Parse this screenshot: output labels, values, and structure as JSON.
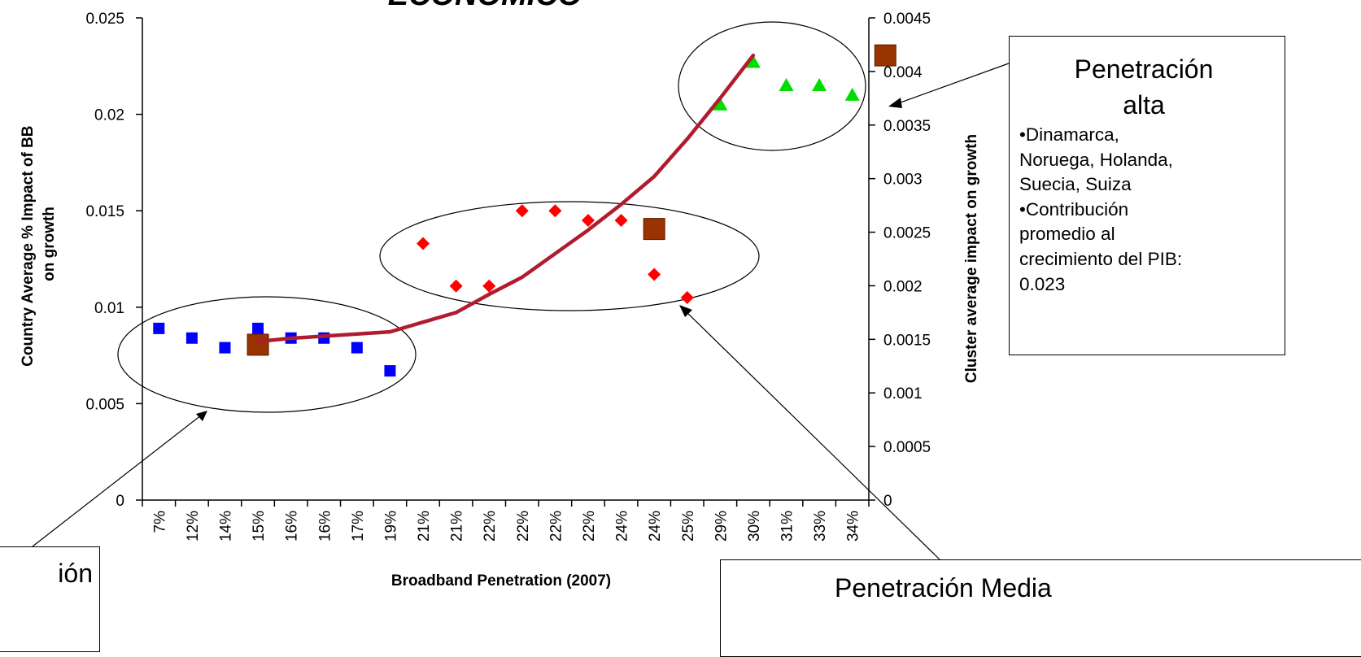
{
  "chart_data": {
    "type": "scatter",
    "title": "ECONÓMICO",
    "xlabel": "Broadband Penetration (2007)",
    "ylabel_left": "Country Average % Impact of BB on growth",
    "ylabel_right": "Cluster average impact on growth",
    "categories": [
      "7%",
      "12%",
      "14%",
      "15%",
      "16%",
      "16%",
      "17%",
      "19%",
      "21%",
      "21%",
      "22%",
      "22%",
      "22%",
      "22%",
      "24%",
      "24%",
      "25%",
      "29%",
      "30%",
      "31%",
      "33%",
      "34%"
    ],
    "ylim_left": [
      0,
      0.025
    ],
    "yticks_left": [
      "0",
      "0.005",
      "0.01",
      "0.015",
      "0.02",
      "0.025"
    ],
    "ylim_right": [
      0,
      0.0045
    ],
    "yticks_right": [
      "0",
      "0.0005",
      "0.001",
      "0.0015",
      "0.002",
      "0.0025",
      "0.003",
      "0.0035",
      "0.004",
      "0.0045"
    ],
    "series": [
      {
        "marker": "square",
        "color": "#0000ff",
        "points": [
          [
            0,
            0.0089
          ],
          [
            1,
            0.0084
          ],
          [
            2,
            0.0079
          ],
          [
            3,
            0.0089
          ],
          [
            4,
            0.0084
          ],
          [
            5,
            0.0084
          ],
          [
            6,
            0.0079
          ],
          [
            7,
            0.0067
          ]
        ]
      },
      {
        "marker": "diamond",
        "color": "#ff0000",
        "points": [
          [
            8,
            0.0133
          ],
          [
            9,
            0.0111
          ],
          [
            10,
            0.0111
          ],
          [
            11,
            0.015
          ],
          [
            12,
            0.015
          ],
          [
            13,
            0.0145
          ],
          [
            14,
            0.0145
          ],
          [
            15,
            0.0117
          ],
          [
            16,
            0.0105
          ]
        ]
      },
      {
        "marker": "triangle",
        "color": "#00dd00",
        "points": [
          [
            17,
            0.0205
          ],
          [
            18,
            0.0227
          ],
          [
            19,
            0.0215
          ],
          [
            20,
            0.0215
          ],
          [
            21,
            0.021
          ]
        ]
      },
      {
        "marker": "big-square",
        "color": "#993300",
        "axis": "right",
        "points": [
          [
            3,
            0.00145
          ],
          [
            15,
            0.00253
          ],
          [
            22,
            0.00415
          ]
        ]
      },
      {
        "marker": "line",
        "color": "#b01c2e",
        "axis": "right",
        "points": [
          [
            3,
            0.00148
          ],
          [
            4,
            0.00151
          ],
          [
            5,
            0.00153
          ],
          [
            6,
            0.00155
          ],
          [
            7,
            0.00157
          ],
          [
            8,
            0.00166
          ],
          [
            9,
            0.00175
          ],
          [
            10,
            0.00192
          ],
          [
            11,
            0.00208
          ],
          [
            12,
            0.0023
          ],
          [
            13,
            0.00252
          ],
          [
            14,
            0.00276
          ],
          [
            15,
            0.00302
          ],
          [
            16,
            0.00337
          ],
          [
            17,
            0.00375
          ],
          [
            18,
            0.00415
          ]
        ]
      }
    ]
  },
  "callouts": {
    "high": {
      "title_line1": "Penetración",
      "title_line2": "alta",
      "bullets": [
        "•Dinamarca,",
        "Noruega, Holanda,",
        "Suecia, Suiza",
        "•Contribución",
        "promedio al",
        "crecimiento del PIB:",
        "0.023"
      ]
    },
    "low": {
      "title": "ión"
    },
    "mid": {
      "title": "Penetración Media"
    }
  }
}
